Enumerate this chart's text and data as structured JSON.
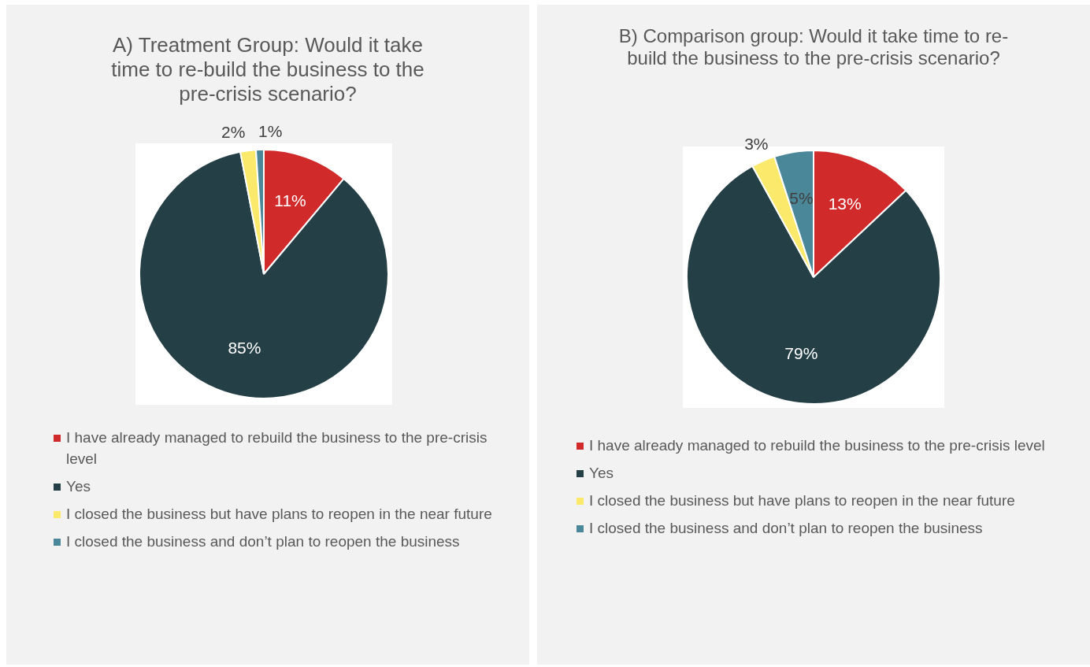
{
  "chart_data": [
    {
      "type": "pie",
      "title": "A) Treatment Group: Would it take time to re-build the business to the pre-crisis scenario?",
      "categories": [
        "I have already managed to rebuild the business to the pre-crisis level",
        "Yes",
        "I closed the business but have plans to reopen in the near future",
        "I closed the business and don’t plan to reopen the business"
      ],
      "values": [
        11,
        85,
        2,
        1
      ],
      "value_labels": [
        "11%",
        "85%",
        "2%",
        "1%"
      ],
      "colors": [
        "#d12a2a",
        "#253f47",
        "#fbe96b",
        "#4a8799"
      ],
      "legend": "bottom"
    },
    {
      "type": "pie",
      "title": "B) Comparison group: Would it take time to re-build the business to the pre-crisis scenario?",
      "categories": [
        "I have already managed to rebuild the business to the pre-crisis level",
        "Yes",
        "I closed the business but have plans to reopen in the near future",
        "I closed the business and don’t plan to reopen the business"
      ],
      "values": [
        13,
        79,
        3,
        5
      ],
      "value_labels": [
        "13%",
        "79%",
        "3%",
        "5%"
      ],
      "colors": [
        "#d12a2a",
        "#253f47",
        "#fbe96b",
        "#4a8799"
      ],
      "legend": "bottom"
    }
  ]
}
